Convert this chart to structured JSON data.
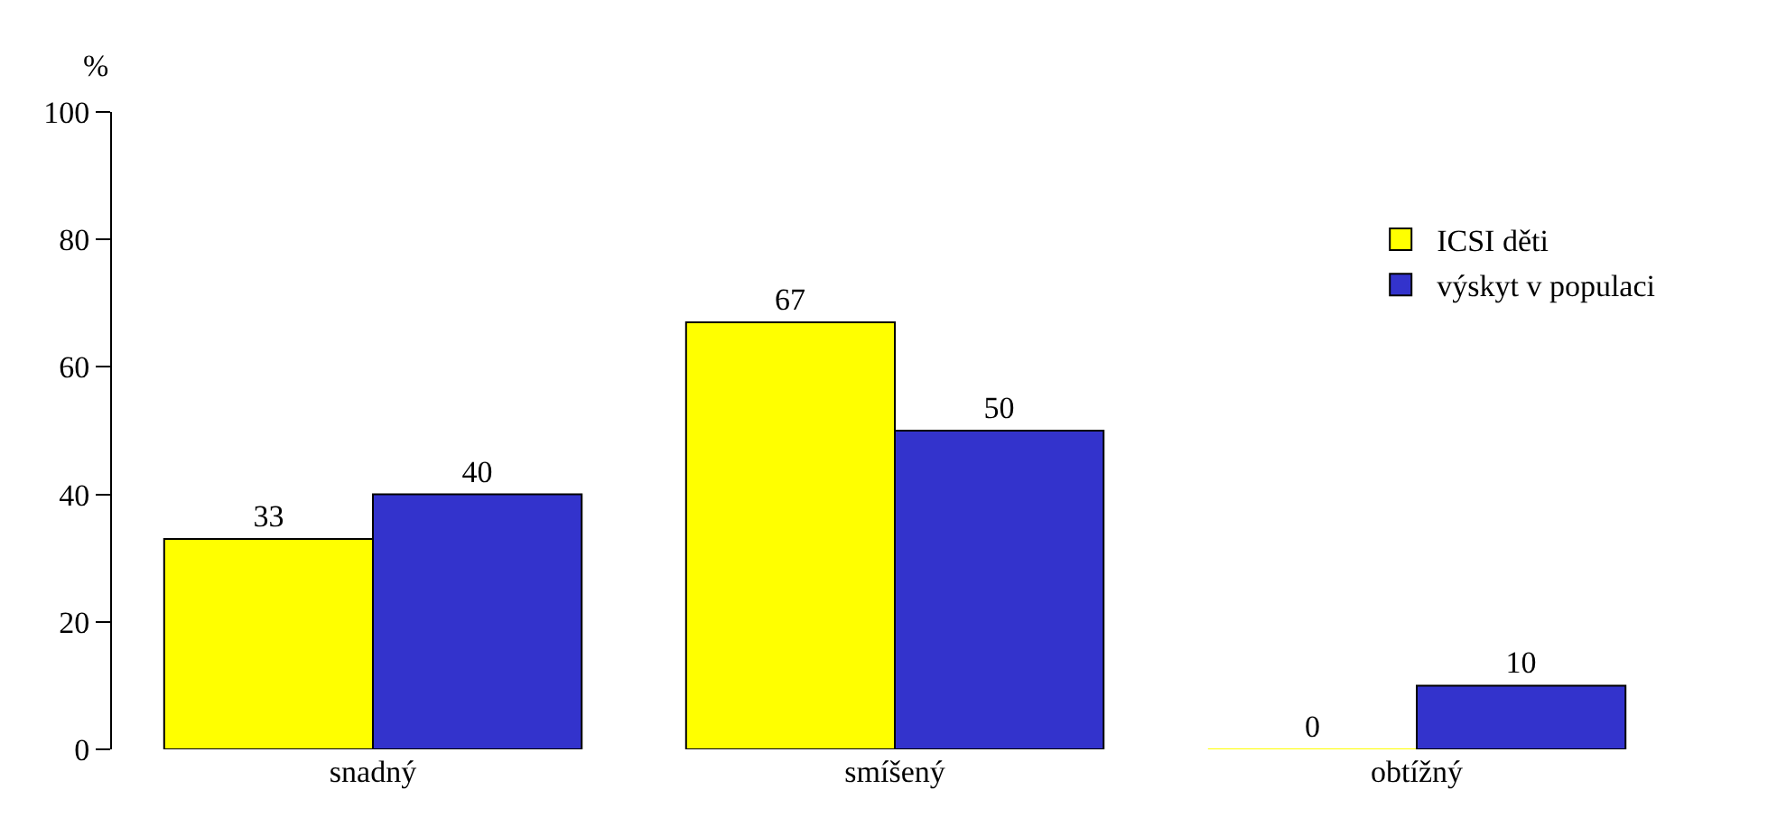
{
  "chart_data": {
    "type": "bar",
    "ylabel": "%",
    "categories": [
      "snadný",
      "smíšený",
      "obtížný"
    ],
    "series": [
      {
        "name": "ICSI děti",
        "color": "#ffff00",
        "values": [
          33,
          67,
          0
        ]
      },
      {
        "name": "výskyt v populaci",
        "color": "#3333cc",
        "values": [
          40,
          50,
          10
        ]
      }
    ],
    "ylim": [
      0,
      100
    ],
    "yticks": [
      0,
      20,
      40,
      60,
      80,
      100
    ],
    "legend": "top right",
    "data_labels": true
  }
}
